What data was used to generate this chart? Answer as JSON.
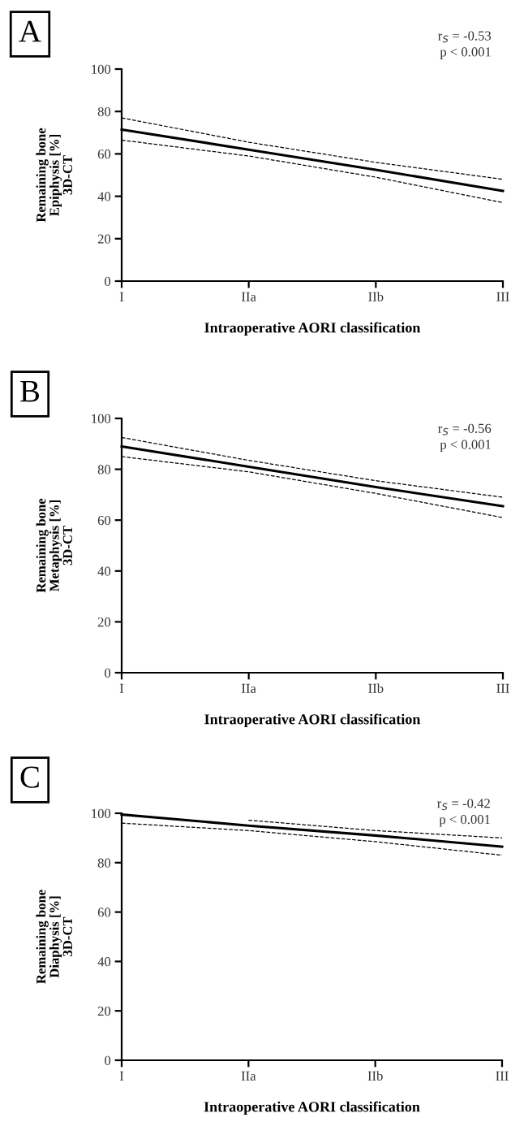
{
  "chart_data": [
    {
      "type": "line",
      "title": "A",
      "xlabel": "Intraoperative AORI classification",
      "ylabel": "Remaining bone\nEpiphysis [%]\n3D-CT",
      "categories": [
        "I",
        "IIa",
        "IIb",
        "III"
      ],
      "ylim": [
        0,
        100
      ],
      "yticks": [
        0,
        20,
        40,
        60,
        80,
        100
      ],
      "annotations": [
        "r$_{S}$ = -0.53\np < 0.001"
      ],
      "series": [
        {
          "color": "#000000",
          "line_style": "solid",
          "values": [
            71.5,
            62,
            52.5,
            42.5
          ]
        },
        {
          "color": "#000000",
          "line_style": "dashed",
          "values": [
            77,
            65.5,
            56,
            48
          ]
        },
        {
          "color": "#000000",
          "line_style": "dashed",
          "values": [
            66.5,
            59,
            49,
            37
          ]
        }
      ]
    },
    {
      "type": "line",
      "title": "B",
      "xlabel": "Intraoperative AORI classification",
      "ylabel": "Remaining bone\nMetaphysis [%]\n3D-CT",
      "categories": [
        "I",
        "IIa",
        "IIb",
        "III"
      ],
      "ylim": [
        0,
        100
      ],
      "yticks": [
        0,
        20,
        40,
        60,
        80,
        100
      ],
      "annotations": [
        "r$_{S}$ = -0.56\np < 0.001"
      ],
      "series": [
        {
          "color": "#000000",
          "line_style": "solid",
          "values": [
            89,
            81,
            73,
            65.5
          ]
        },
        {
          "color": "#000000",
          "line_style": "dashed",
          "values": [
            92.5,
            83.5,
            75.5,
            69
          ]
        },
        {
          "color": "#000000",
          "line_style": "dashed",
          "values": [
            85,
            79,
            70.5,
            61
          ]
        }
      ]
    },
    {
      "type": "line",
      "title": "C",
      "xlabel": "Intraoperative AORI classification",
      "ylabel": "Remaining bone\nDiaphysis [%]\n3D-CT",
      "categories": [
        "I",
        "IIa",
        "IIb",
        "III"
      ],
      "ylim": [
        0,
        100
      ],
      "yticks": [
        0,
        20,
        40,
        60,
        80,
        100
      ],
      "annotations": [
        "r$_{S}$ = -0.42\np < 0.001"
      ],
      "series": [
        {
          "color": "#000000",
          "line_style": "solid",
          "values": [
            99.5,
            95,
            91,
            86.5
          ]
        },
        {
          "color": "#000000",
          "line_style": "dashed",
          "values": [
            null,
            97.2,
            93,
            90
          ]
        },
        {
          "color": "#000000",
          "line_style": "dashed",
          "values": [
            96,
            93,
            88.5,
            83
          ]
        }
      ]
    }
  ]
}
